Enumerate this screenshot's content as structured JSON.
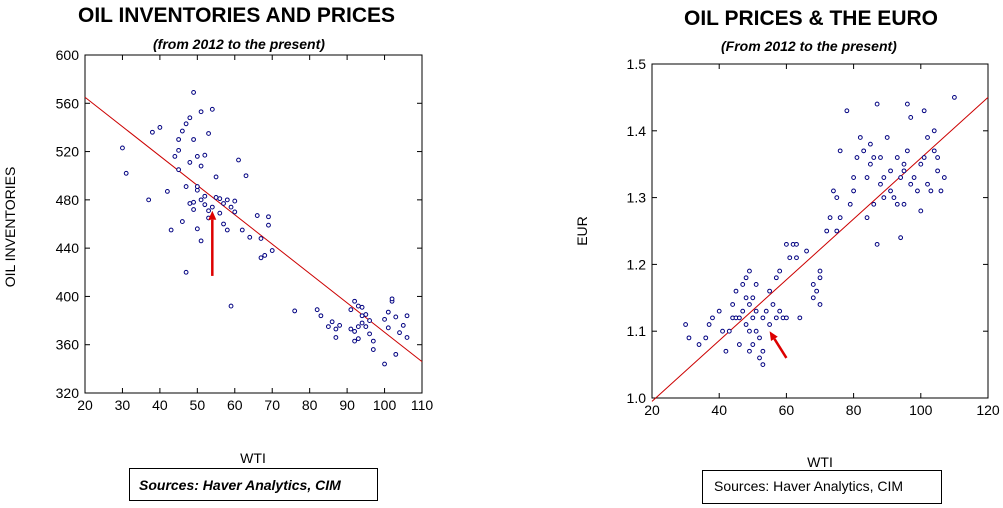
{
  "colors": {
    "points": "#000080",
    "fit_line": "#cc0000",
    "arrow": "#dd0000"
  },
  "chart_data": [
    {
      "type": "scatter",
      "title": "OIL INVENTORIES AND PRICES",
      "subtitle": "(from 2012 to the present)",
      "xlabel": "WTI",
      "ylabel": "OIL INVENTORIES",
      "xlim": [
        20,
        110
      ],
      "ylim": [
        320,
        600
      ],
      "x_ticks": [
        20,
        30,
        40,
        50,
        60,
        70,
        80,
        90,
        100,
        110
      ],
      "y_ticks": [
        320,
        360,
        400,
        440,
        480,
        520,
        560,
        600
      ],
      "grid": false,
      "fit_line": {
        "x": [
          20,
          110
        ],
        "y": [
          565,
          346
        ]
      },
      "arrow": {
        "from": [
          54,
          417
        ],
        "to": [
          54,
          471
        ]
      },
      "source": "Sources: Haver Analytics, CIM",
      "points": [
        [
          30,
          523
        ],
        [
          31,
          502
        ],
        [
          37,
          480
        ],
        [
          38,
          536
        ],
        [
          40,
          540
        ],
        [
          42,
          487
        ],
        [
          43,
          455
        ],
        [
          44,
          516
        ],
        [
          45,
          505
        ],
        [
          45,
          530
        ],
        [
          45,
          521
        ],
        [
          46,
          537
        ],
        [
          46,
          462
        ],
        [
          47,
          543
        ],
        [
          47,
          491
        ],
        [
          47,
          420
        ],
        [
          48,
          548
        ],
        [
          48,
          511
        ],
        [
          48,
          477
        ],
        [
          49,
          569
        ],
        [
          49,
          530
        ],
        [
          49,
          478
        ],
        [
          49,
          472
        ],
        [
          50,
          516
        ],
        [
          50,
          488
        ],
        [
          50,
          491
        ],
        [
          50,
          456
        ],
        [
          51,
          553
        ],
        [
          51,
          508
        ],
        [
          51,
          480
        ],
        [
          51,
          446
        ],
        [
          52,
          517
        ],
        [
          52,
          483
        ],
        [
          52,
          476
        ],
        [
          53,
          535
        ],
        [
          53,
          471
        ],
        [
          53,
          465
        ],
        [
          54,
          555
        ],
        [
          54,
          474
        ],
        [
          55,
          499
        ],
        [
          55,
          482
        ],
        [
          56,
          481
        ],
        [
          56,
          469
        ],
        [
          57,
          477
        ],
        [
          57,
          460
        ],
        [
          58,
          480
        ],
        [
          58,
          455
        ],
        [
          59,
          392
        ],
        [
          59,
          474
        ],
        [
          60,
          479
        ],
        [
          60,
          470
        ],
        [
          61,
          513
        ],
        [
          62,
          455
        ],
        [
          63,
          500
        ],
        [
          64,
          449
        ],
        [
          66,
          467
        ],
        [
          67,
          448
        ],
        [
          67,
          432
        ],
        [
          68,
          434
        ],
        [
          69,
          466
        ],
        [
          69,
          459
        ],
        [
          70,
          438
        ],
        [
          76,
          388
        ],
        [
          82,
          389
        ],
        [
          83,
          384
        ],
        [
          85,
          375
        ],
        [
          86,
          379
        ],
        [
          87,
          373
        ],
        [
          87,
          366
        ],
        [
          88,
          376
        ],
        [
          91,
          389
        ],
        [
          91,
          373
        ],
        [
          92,
          396
        ],
        [
          92,
          371
        ],
        [
          92,
          363
        ],
        [
          93,
          392
        ],
        [
          93,
          375
        ],
        [
          93,
          365
        ],
        [
          94,
          378
        ],
        [
          94,
          391
        ],
        [
          94,
          384
        ],
        [
          95,
          385
        ],
        [
          95,
          375
        ],
        [
          96,
          380
        ],
        [
          96,
          369
        ],
        [
          97,
          356
        ],
        [
          97,
          363
        ],
        [
          100,
          344
        ],
        [
          100,
          381
        ],
        [
          101,
          374
        ],
        [
          101,
          387
        ],
        [
          102,
          396
        ],
        [
          102,
          398
        ],
        [
          103,
          352
        ],
        [
          103,
          383
        ],
        [
          104,
          370
        ],
        [
          105,
          376
        ],
        [
          106,
          384
        ],
        [
          106,
          366
        ]
      ]
    },
    {
      "type": "scatter",
      "title": "OIL PRICES & THE EURO",
      "subtitle": "(From 2012 to the present)",
      "xlabel": "WTI",
      "ylabel": "EUR",
      "xlim": [
        20,
        120
      ],
      "ylim": [
        1.0,
        1.5
      ],
      "x_ticks": [
        20,
        40,
        60,
        80,
        100,
        120
      ],
      "y_ticks": [
        1.0,
        1.1,
        1.2,
        1.3,
        1.4,
        1.5
      ],
      "grid": false,
      "fit_line": {
        "x": [
          20,
          120
        ],
        "y": [
          0.995,
          1.45
        ]
      },
      "arrow": {
        "from": [
          60,
          1.06
        ],
        "to": [
          55,
          1.1
        ]
      },
      "source": "Sources:  Haver Analytics, CIM",
      "points": [
        [
          30,
          1.11
        ],
        [
          31,
          1.09
        ],
        [
          34,
          1.08
        ],
        [
          36,
          1.09
        ],
        [
          37,
          1.11
        ],
        [
          38,
          1.12
        ],
        [
          40,
          1.13
        ],
        [
          41,
          1.1
        ],
        [
          42,
          1.07
        ],
        [
          43,
          1.1
        ],
        [
          44,
          1.12
        ],
        [
          44,
          1.14
        ],
        [
          45,
          1.12
        ],
        [
          45,
          1.16
        ],
        [
          46,
          1.12
        ],
        [
          46,
          1.08
        ],
        [
          47,
          1.13
        ],
        [
          47,
          1.17
        ],
        [
          48,
          1.11
        ],
        [
          48,
          1.15
        ],
        [
          48,
          1.18
        ],
        [
          49,
          1.07
        ],
        [
          49,
          1.1
        ],
        [
          49,
          1.14
        ],
        [
          49,
          1.19
        ],
        [
          50,
          1.08
        ],
        [
          50,
          1.12
        ],
        [
          50,
          1.15
        ],
        [
          51,
          1.1
        ],
        [
          51,
          1.13
        ],
        [
          51,
          1.17
        ],
        [
          52,
          1.06
        ],
        [
          52,
          1.09
        ],
        [
          53,
          1.05
        ],
        [
          53,
          1.07
        ],
        [
          53,
          1.12
        ],
        [
          54,
          1.13
        ],
        [
          55,
          1.11
        ],
        [
          55,
          1.16
        ],
        [
          56,
          1.14
        ],
        [
          57,
          1.12
        ],
        [
          57,
          1.18
        ],
        [
          58,
          1.19
        ],
        [
          58,
          1.13
        ],
        [
          59,
          1.12
        ],
        [
          60,
          1.12
        ],
        [
          60,
          1.23
        ],
        [
          61,
          1.21
        ],
        [
          62,
          1.23
        ],
        [
          63,
          1.23
        ],
        [
          63,
          1.21
        ],
        [
          64,
          1.12
        ],
        [
          66,
          1.22
        ],
        [
          68,
          1.15
        ],
        [
          68,
          1.17
        ],
        [
          69,
          1.16
        ],
        [
          70,
          1.14
        ],
        [
          70,
          1.18
        ],
        [
          70,
          1.19
        ],
        [
          72,
          1.25
        ],
        [
          73,
          1.27
        ],
        [
          74,
          1.31
        ],
        [
          75,
          1.25
        ],
        [
          75,
          1.3
        ],
        [
          76,
          1.27
        ],
        [
          76,
          1.37
        ],
        [
          78,
          1.43
        ],
        [
          79,
          1.29
        ],
        [
          80,
          1.31
        ],
        [
          80,
          1.33
        ],
        [
          81,
          1.36
        ],
        [
          82,
          1.39
        ],
        [
          83,
          1.37
        ],
        [
          84,
          1.27
        ],
        [
          84,
          1.33
        ],
        [
          85,
          1.35
        ],
        [
          85,
          1.38
        ],
        [
          86,
          1.36
        ],
        [
          86,
          1.29
        ],
        [
          87,
          1.44
        ],
        [
          87,
          1.23
        ],
        [
          88,
          1.32
        ],
        [
          88,
          1.36
        ],
        [
          89,
          1.3
        ],
        [
          89,
          1.33
        ],
        [
          90,
          1.39
        ],
        [
          91,
          1.31
        ],
        [
          91,
          1.34
        ],
        [
          92,
          1.3
        ],
        [
          93,
          1.29
        ],
        [
          93,
          1.36
        ],
        [
          94,
          1.24
        ],
        [
          94,
          1.33
        ],
        [
          95,
          1.34
        ],
        [
          95,
          1.29
        ],
        [
          95,
          1.35
        ],
        [
          96,
          1.44
        ],
        [
          96,
          1.37
        ],
        [
          97,
          1.32
        ],
        [
          97,
          1.42
        ],
        [
          98,
          1.33
        ],
        [
          99,
          1.31
        ],
        [
          100,
          1.28
        ],
        [
          100,
          1.35
        ],
        [
          101,
          1.43
        ],
        [
          101,
          1.36
        ],
        [
          102,
          1.39
        ],
        [
          102,
          1.32
        ],
        [
          103,
          1.31
        ],
        [
          104,
          1.37
        ],
        [
          104,
          1.4
        ],
        [
          105,
          1.34
        ],
        [
          105,
          1.36
        ],
        [
          106,
          1.31
        ],
        [
          107,
          1.33
        ],
        [
          110,
          1.45
        ]
      ]
    }
  ]
}
